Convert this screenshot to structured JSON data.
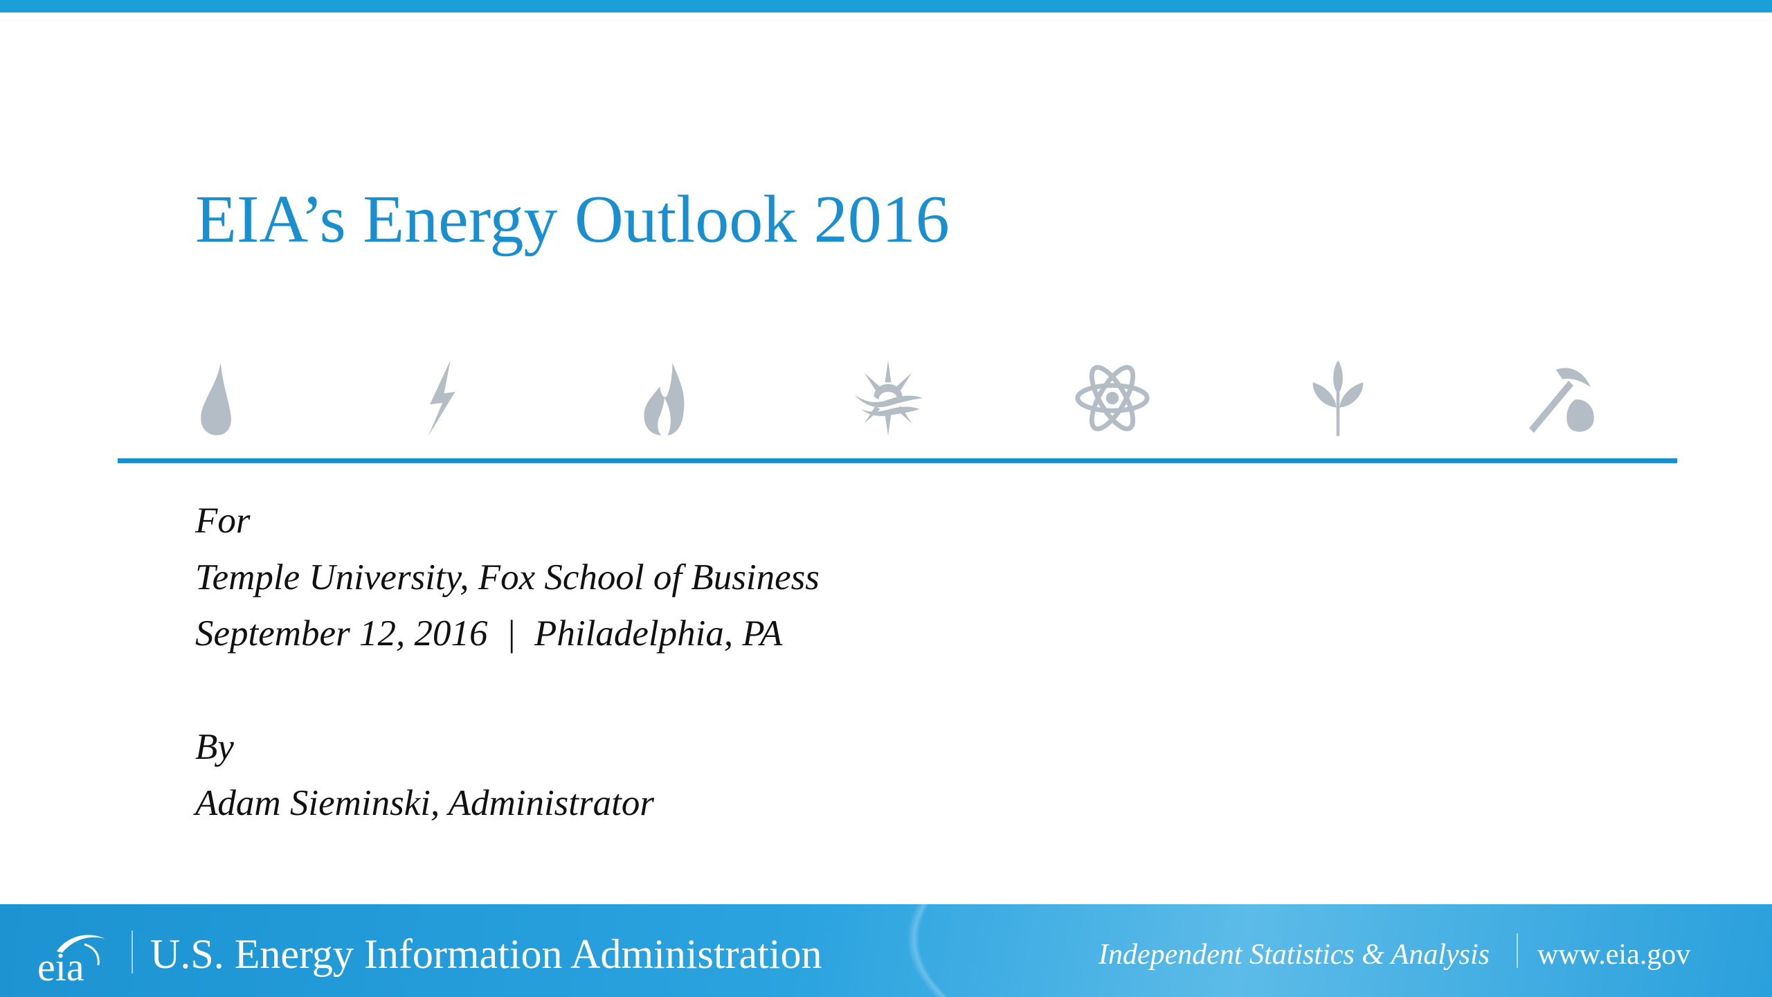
{
  "slide": {
    "title": "EIA’s Energy Outlook 2016",
    "icons": [
      "oil-drop-icon",
      "electricity-bolt-icon",
      "natural-gas-flame-icon",
      "sun-icon",
      "nuclear-atom-icon",
      "plant-icon",
      "coal-pickaxe-icon"
    ],
    "for_label": "For",
    "audience": "Temple University, Fox School of Business",
    "date_location": "September 12, 2016  |  Philadelphia, PA",
    "by_label": "By",
    "presenter": "Adam Sieminski, Administrator"
  },
  "footer": {
    "logo_text": "eia",
    "agency": "U.S. Energy Information Administration",
    "tagline": "Independent Statistics & Analysis",
    "url": "www.eia.gov"
  },
  "colors": {
    "accent": "#1a8fd0",
    "icon_gray": "#b4bcc6",
    "footer": "#2aa3df"
  }
}
